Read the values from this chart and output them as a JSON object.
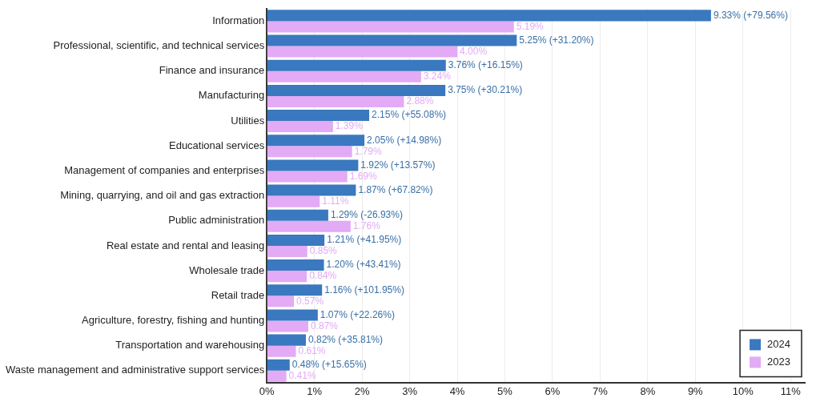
{
  "chart_data": {
    "type": "bar",
    "orientation": "horizontal",
    "categories": [
      "Information",
      "Professional, scientific, and technical services",
      "Finance and insurance",
      "Manufacturing",
      "Utilities",
      "Educational services",
      "Management of companies and enterprises",
      "Mining, quarrying, and oil and gas extraction",
      "Public administration",
      "Real estate and rental and leasing",
      "Wholesale trade",
      "Retail trade",
      "Agriculture, forestry, fishing and hunting",
      "Transportation and warehousing",
      "Waste management and administrative support services"
    ],
    "series": [
      {
        "name": "2024",
        "color": "#3a78bf",
        "values": [
          9.33,
          5.25,
          3.76,
          3.75,
          2.15,
          2.05,
          1.92,
          1.87,
          1.29,
          1.21,
          1.2,
          1.16,
          1.07,
          0.82,
          0.48
        ],
        "value_labels": [
          "9.33% (+79.56%)",
          "5.25% (+31.20%)",
          "3.76% (+16.15%)",
          "3.75% (+30.21%)",
          "2.15% (+55.08%)",
          "2.05% (+14.98%)",
          "1.92% (+13.57%)",
          "1.87% (+67.82%)",
          "1.29% (-26.93%)",
          "1.21% (+41.95%)",
          "1.20% (+43.41%)",
          "1.16% (+101.95%)",
          "1.07% (+22.26%)",
          "0.82% (+35.81%)",
          "0.48% (+15.65%)"
        ]
      },
      {
        "name": "2023",
        "color": "#e3aaf5",
        "values": [
          5.19,
          4.0,
          3.24,
          2.88,
          1.39,
          1.79,
          1.69,
          1.11,
          1.76,
          0.85,
          0.84,
          0.57,
          0.87,
          0.61,
          0.41
        ],
        "value_labels": [
          "5.19%",
          "4.00%",
          "3.24%",
          "2.88%",
          "1.39%",
          "1.79%",
          "1.69%",
          "1.11%",
          "1.76%",
          "0.85%",
          "0.84%",
          "0.57%",
          "0.87%",
          "0.61%",
          "0.41%"
        ]
      }
    ],
    "xlim": [
      0,
      11.3
    ],
    "xticks": [
      {
        "value": 0,
        "label": "0%"
      },
      {
        "value": 1,
        "label": "1%"
      },
      {
        "value": 2,
        "label": "2%"
      },
      {
        "value": 3,
        "label": "3%"
      },
      {
        "value": 4,
        "label": "4%"
      },
      {
        "value": 5,
        "label": "5%"
      },
      {
        "value": 6,
        "label": "6%"
      },
      {
        "value": 7,
        "label": "7%"
      },
      {
        "value": 8,
        "label": "8%"
      },
      {
        "value": 9,
        "label": "9%"
      },
      {
        "value": 10,
        "label": "10%"
      },
      {
        "value": 11,
        "label": "11%"
      }
    ],
    "grid": "x",
    "legend": "bottom right"
  }
}
